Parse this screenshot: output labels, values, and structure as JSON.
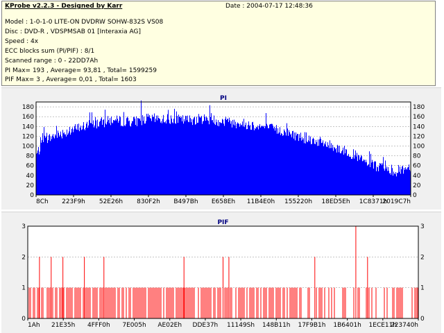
{
  "header": {
    "app_title": "KProbe v2.2.3 - Designed by Karr",
    "date": "Date : 2004-07-17 12:48:36",
    "model": "Model : 1-0-1-0 LITE-ON DVDRW SOHW-832S  VS08",
    "disc": "Disc : DVD-R , VDSPMSAB 01 [Interaxia AG]",
    "speed": "Speed : 4x",
    "ecc": "ECC blocks sum (PI/PIF) : 8/1",
    "scanned": "Scanned range : 0 - 22DD7Ah",
    "pi_stats": "PI Max= 193 , Average= 93,81 , Total= 1599259",
    "pif_stats": "PIF Max= 3 , Average= 0,01 , Total= 1603"
  },
  "colors": {
    "pi_fill": "#0000ff",
    "pif_bar": "#ff0000",
    "grid": "#a0a0a0",
    "title": "#000080",
    "info_bg": "#ffffe1",
    "panel_bg": "#f0f0f0"
  },
  "chart_data": [
    {
      "type": "area",
      "title": "PI",
      "ylim": [
        0,
        190
      ],
      "yticks": [
        0,
        20,
        40,
        60,
        80,
        100,
        120,
        140,
        160,
        180
      ],
      "xtick_labels": [
        "8Ch",
        "223F9h",
        "52E26h",
        "830F2h",
        "B497Bh",
        "E658Eh",
        "11B4E0h",
        "155220h",
        "18ED5Eh",
        "1C8371h",
        "2019C7h"
      ],
      "grid": true,
      "max": 193,
      "average": 93.81,
      "profile": [
        [
          0,
          82
        ],
        [
          0.02,
          110
        ],
        [
          0.05,
          122
        ],
        [
          0.1,
          134
        ],
        [
          0.15,
          145
        ],
        [
          0.2,
          152
        ],
        [
          0.26,
          150
        ],
        [
          0.3,
          156
        ],
        [
          0.35,
          155
        ],
        [
          0.4,
          153
        ],
        [
          0.45,
          156
        ],
        [
          0.5,
          150
        ],
        [
          0.55,
          146
        ],
        [
          0.6,
          140
        ],
        [
          0.65,
          132
        ],
        [
          0.7,
          120
        ],
        [
          0.75,
          110
        ],
        [
          0.8,
          98
        ],
        [
          0.85,
          82
        ],
        [
          0.88,
          66
        ],
        [
          0.92,
          55
        ],
        [
          0.96,
          48
        ],
        [
          1.0,
          58
        ]
      ]
    },
    {
      "type": "bar",
      "title": "PIF",
      "ylim": [
        0,
        3
      ],
      "yticks": [
        0,
        1,
        2,
        3
      ],
      "xtick_labels": [
        "1Ah",
        "21E35h",
        "4FFF0h",
        "7E005h",
        "AE02Eh",
        "DDE37h",
        "11149Sh",
        "148B11h",
        "17F9B1h",
        "1B6401h",
        "1ECE11h",
        "223740h"
      ],
      "grid": true,
      "max": 3,
      "average": 0.01,
      "twos": [
        0.03,
        0.06,
        0.09,
        0.145,
        0.195,
        0.4,
        0.5,
        0.515,
        0.735,
        0.87,
        1.0
      ],
      "three": [
        0.84
      ]
    }
  ]
}
